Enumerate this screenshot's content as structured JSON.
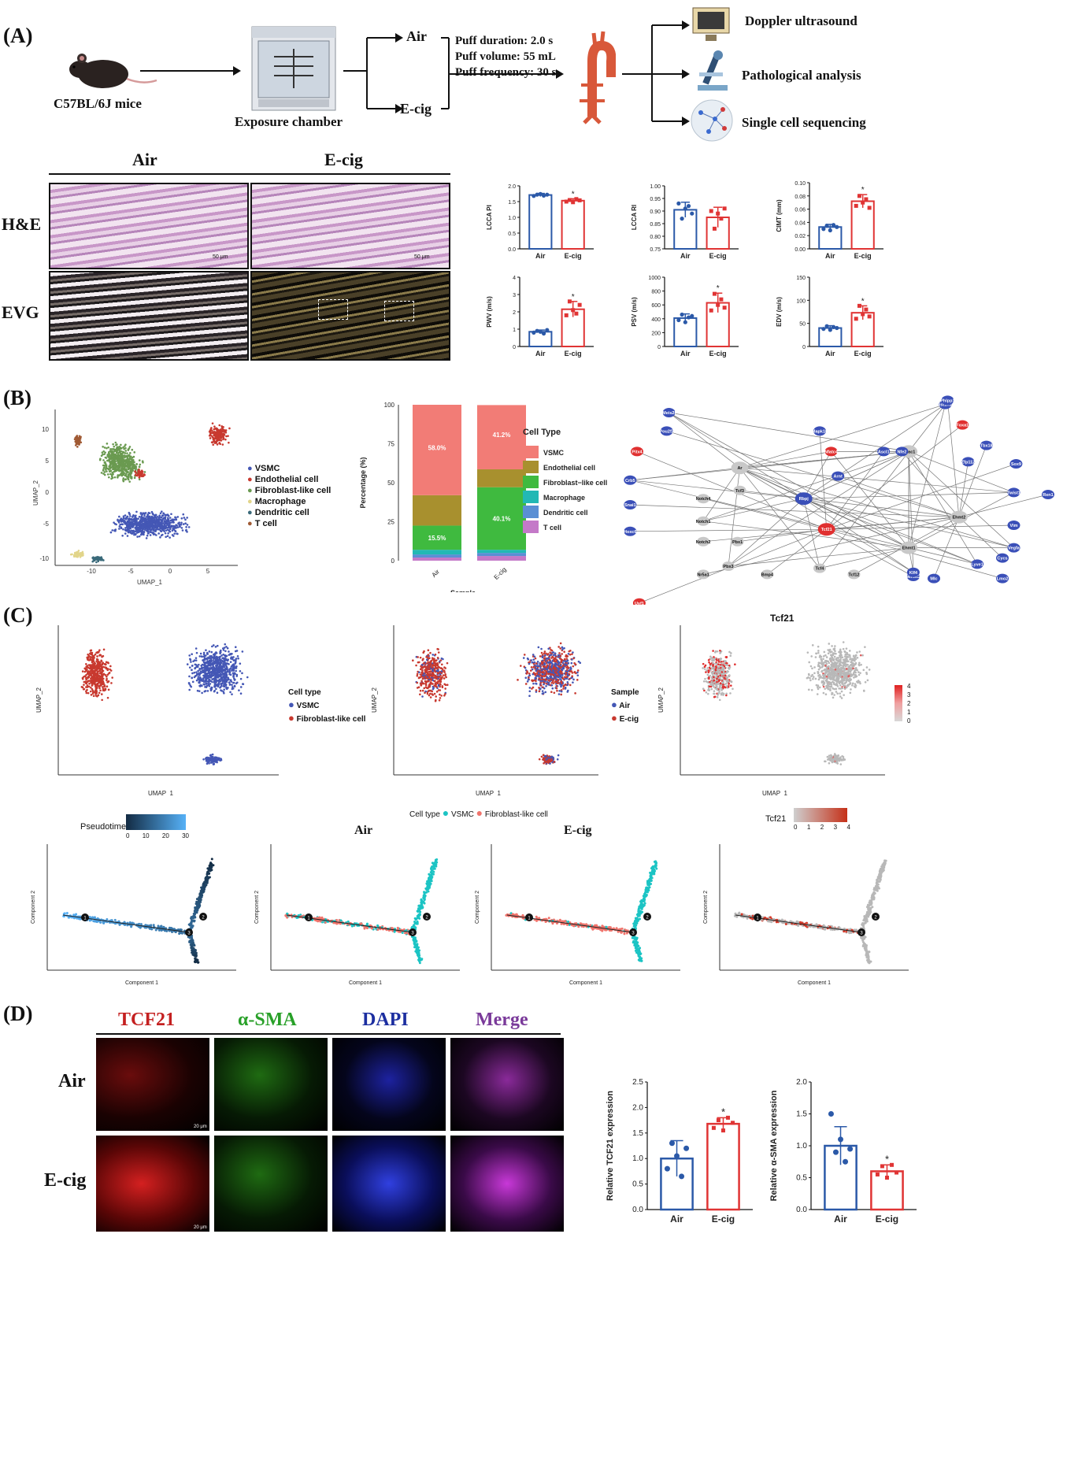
{
  "panels": {
    "a": "(A)",
    "b": "(B)",
    "c": "(C)",
    "d": "(D)"
  },
  "colors": {
    "air": "#2b59a8",
    "ecig": "#e03434",
    "vsmc": "#f27c76",
    "endo": "#a8902e",
    "fib": "#3fba3f",
    "mac": "#22b8b4",
    "dend": "#5a8fd4",
    "tcell": "#c479c8",
    "cyan": "#1cc4c4",
    "salmon": "#f0746c"
  },
  "panelA": {
    "mice": "C57BL/6J mice",
    "chamber": "Exposure chamber",
    "air": "Air",
    "ecig": "E-cig",
    "puff1": "Puff duration: 2.0 s",
    "puff2": "Puff volume: 55 mL",
    "puff3": "Puff frequency: 30 s",
    "out1": "Doppler ultrasound",
    "out2": "Pathological analysis",
    "out3": "Single cell sequencing",
    "histo_air": "Air",
    "histo_ecig": "E-cig",
    "row_he": "H&E",
    "row_evg": "EVG",
    "scale": "50 μm",
    "icon_names": [
      "mouse-icon",
      "chamber-icon",
      "aorta-icon",
      "ultrasound-icon",
      "microscope-icon",
      "network-icon"
    ]
  },
  "chart_data": [
    {
      "type": "bar",
      "title": "",
      "ylabel": "LCCA PI",
      "categories": [
        "Air",
        "E-cig"
      ],
      "values": [
        1.71,
        1.53
      ],
      "errors": [
        0.05,
        0.06
      ],
      "ylim": [
        0,
        2.0
      ],
      "yticks": [
        "0.0",
        "0.5",
        "1.0",
        "1.5",
        "2.0"
      ],
      "sig": "*",
      "points": [
        [
          1.68,
          1.72,
          1.74,
          1.69,
          1.72
        ],
        [
          1.5,
          1.55,
          1.48,
          1.58,
          1.54
        ]
      ]
    },
    {
      "type": "bar",
      "title": "",
      "ylabel": "LCCA RI",
      "categories": [
        "Air",
        "E-cig"
      ],
      "values": [
        0.905,
        0.875
      ],
      "errors": [
        0.03,
        0.04
      ],
      "ylim": [
        0.75,
        1.0
      ],
      "yticks": [
        "0.75",
        "0.80",
        "0.85",
        "0.90",
        "0.95",
        "1.00"
      ],
      "sig": "",
      "points": [
        [
          0.93,
          0.87,
          0.91,
          0.92,
          0.89
        ],
        [
          0.9,
          0.83,
          0.89,
          0.87,
          0.91
        ]
      ]
    },
    {
      "type": "bar",
      "title": "",
      "ylabel": "CIMT (mm)",
      "categories": [
        "Air",
        "E-cig"
      ],
      "values": [
        0.033,
        0.072
      ],
      "errors": [
        0.004,
        0.01
      ],
      "ylim": [
        0,
        0.1
      ],
      "yticks": [
        "0.00",
        "0.02",
        "0.04",
        "0.06",
        "0.08",
        "0.10"
      ],
      "sig": "*",
      "points": [
        [
          0.03,
          0.035,
          0.028,
          0.036,
          0.033
        ],
        [
          0.065,
          0.08,
          0.07,
          0.075,
          0.062
        ]
      ]
    },
    {
      "type": "bar",
      "title": "",
      "ylabel": "PWV (m/s)",
      "categories": [
        "Air",
        "E-cig"
      ],
      "values": [
        0.85,
        2.15
      ],
      "errors": [
        0.1,
        0.45
      ],
      "ylim": [
        0,
        4
      ],
      "yticks": [
        "0",
        "1",
        "2",
        "3",
        "4"
      ],
      "sig": "*",
      "points": [
        [
          0.8,
          0.9,
          0.85,
          0.75,
          0.95
        ],
        [
          1.8,
          2.6,
          2.1,
          1.9,
          2.4
        ]
      ]
    },
    {
      "type": "bar",
      "title": "",
      "ylabel": "PSV (m/s)",
      "categories": [
        "Air",
        "E-cig"
      ],
      "values": [
        410,
        630
      ],
      "errors": [
        60,
        140
      ],
      "ylim": [
        0,
        1000
      ],
      "yticks": [
        "0",
        "200",
        "400",
        "600",
        "800",
        "1000"
      ],
      "sig": "*",
      "points": [
        [
          380,
          460,
          350,
          420,
          440
        ],
        [
          520,
          760,
          600,
          680,
          560
        ]
      ]
    },
    {
      "type": "bar",
      "title": "",
      "ylabel": "EDV (m/s)",
      "categories": [
        "Air",
        "E-cig"
      ],
      "values": [
        40,
        73
      ],
      "errors": [
        5,
        15
      ],
      "ylim": [
        0,
        150
      ],
      "yticks": [
        "0",
        "50",
        "100",
        "150"
      ],
      "sig": "*",
      "points": [
        [
          38,
          44,
          36,
          42,
          40
        ],
        [
          60,
          88,
          70,
          80,
          65
        ]
      ]
    },
    {
      "type": "bar",
      "title": "",
      "xlabel": "Sample",
      "ylabel": "Percentage (%)",
      "categories": [
        "Air",
        "E-cig"
      ],
      "yticks": [
        "0",
        "25",
        "50",
        "75",
        "100"
      ],
      "series": [
        {
          "name": "T cell",
          "values": [
            2,
            3
          ]
        },
        {
          "name": "Dendritic cell",
          "values": [
            2,
            2
          ]
        },
        {
          "name": "Macrophage",
          "values": [
            3,
            2
          ]
        },
        {
          "name": "Fibroblast−like cell",
          "values": [
            15.5,
            40.1
          ]
        },
        {
          "name": "Endothelial cell",
          "values": [
            19.5,
            11.5
          ]
        },
        {
          "name": "VSMC",
          "values": [
            58.0,
            41.2
          ]
        }
      ],
      "data_labels": [
        [
          "58.0%",
          "15.5%"
        ],
        [
          "41.2%",
          "40.1%"
        ]
      ],
      "legend_title": "Cell Type"
    },
    {
      "type": "bar",
      "title": "",
      "ylabel": "Relative TCF21 expression",
      "categories": [
        "Air",
        "E-cig"
      ],
      "values": [
        1.0,
        1.68
      ],
      "errors": [
        0.35,
        0.12
      ],
      "ylim": [
        0,
        2.5
      ],
      "yticks": [
        "0.0",
        "0.5",
        "1.0",
        "1.5",
        "2.0",
        "2.5"
      ],
      "sig": "*",
      "points": [
        [
          0.8,
          1.3,
          1.05,
          0.65,
          1.2
        ],
        [
          1.6,
          1.75,
          1.55,
          1.8,
          1.7
        ]
      ]
    },
    {
      "type": "bar",
      "title": "",
      "ylabel": "Relative α-SMA expression",
      "categories": [
        "Air",
        "E-cig"
      ],
      "values": [
        1.0,
        0.6
      ],
      "errors": [
        0.3,
        0.1
      ],
      "ylim": [
        0,
        2.0
      ],
      "yticks": [
        "0.0",
        "0.5",
        "1.0",
        "1.5",
        "2.0"
      ],
      "sig": "*",
      "points": [
        [
          1.5,
          0.9,
          1.1,
          0.75,
          0.95
        ],
        [
          0.55,
          0.68,
          0.5,
          0.7,
          0.58
        ]
      ]
    }
  ],
  "panelB": {
    "umap_x": "UMAP_1",
    "umap_y": "UMAP_2",
    "legend": [
      "VSMC",
      "Endothelial cell",
      "Fibroblast-like cell",
      "Macrophage",
      "Dendritic cell",
      "T cell"
    ],
    "stack_legend": [
      "VSMC",
      "Endothelial cell",
      "Fibroblast−like cell",
      "Macrophage",
      "Dendritic cell",
      "T cell"
    ],
    "xticks": [
      "-10",
      "-5",
      "0",
      "5"
    ],
    "yticks": [
      "10",
      "5",
      "0",
      "-5",
      "-10"
    ],
    "network_nodes": [
      "Meis2l",
      "Pou2f2",
      "Pitx4",
      "Crb5",
      "Snai1",
      "Hoxc6",
      "Ar",
      "Tcf3",
      "Notch4",
      "Notch1",
      "Notch2",
      "Pbx1",
      "Pbx3",
      "Nr5a1",
      "Bmp4",
      "Tcf4",
      "Tcf12",
      "Usf1",
      "Rbpj",
      "Tcf21",
      "Mapk10",
      "Nfatc4",
      "Arnt",
      "Ascl1",
      "Hist1h1d",
      "Phlpp1",
      "Foxa1",
      "Hdac1",
      "Tbx18",
      "Ehmt2",
      "Ehmt1",
      "Zfp112",
      "Sox9",
      "Twist1",
      "Ren1",
      "Vim",
      "Vegfa",
      "Cycs",
      "Lmo2",
      "Lyve1",
      "Mlc",
      "Mmsc2",
      "Klf4",
      "Nfe2"
    ]
  },
  "panelC": {
    "legend1_title": "Cell type",
    "legend1": [
      "VSMC",
      "Fibroblast-like cell"
    ],
    "legend2_title": "Sample",
    "legend2": [
      "Air",
      "E-cig"
    ],
    "tcf21": "Tcf21",
    "scale": [
      "4",
      "3",
      "2",
      "1",
      "0"
    ],
    "umap_x": "UMAP_1",
    "umap_y": "UMAP_2",
    "pseudotime": "Pseudotime",
    "pt_ticks": [
      "0",
      "10",
      "20",
      "30"
    ],
    "celltype_legend": "Cell type",
    "ct_items": [
      "VSMC",
      "Fibroblast-like cell"
    ],
    "traj_air": "Air",
    "traj_ecig": "E-cig",
    "tcf21_legend": "Tcf21",
    "tcf21_ticks": [
      "0",
      "1",
      "2",
      "3",
      "4"
    ],
    "comp_x": "Component 1",
    "comp_y": "Component 2"
  },
  "panelD": {
    "headers": [
      "TCF21",
      "α-SMA",
      "DAPI",
      "Merge"
    ],
    "header_colors": [
      "#c42020",
      "#28a028",
      "#1c2ea0",
      "#7a3a9a"
    ],
    "rows": [
      "Air",
      "E-cig"
    ],
    "scale": "20 μm"
  }
}
